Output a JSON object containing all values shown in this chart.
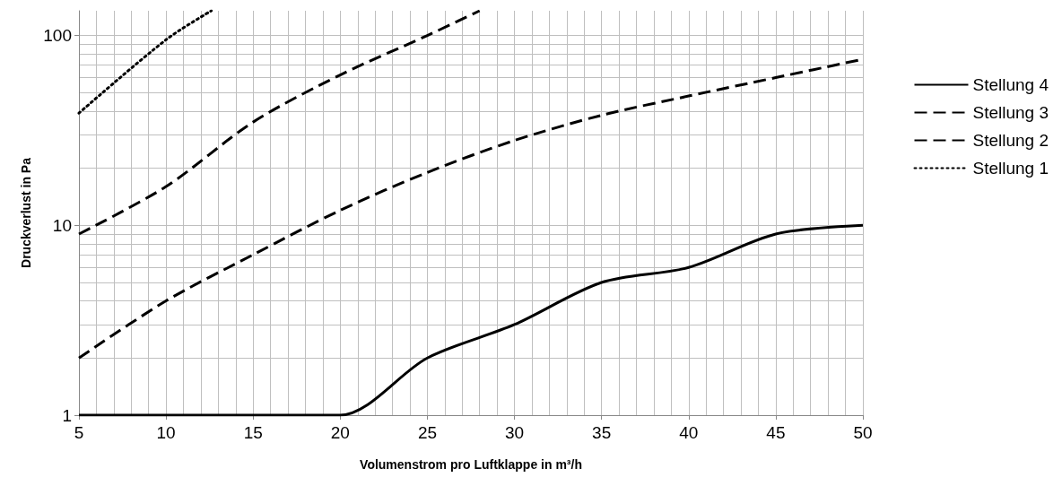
{
  "chart_data": {
    "type": "line",
    "xlabel": "Volumenstrom pro Luftklappe in m³/h",
    "ylabel": "Druckverlust in Pa",
    "log": "y",
    "xlim": [
      5,
      50
    ],
    "xticks": [
      5,
      10,
      15,
      20,
      25,
      30,
      35,
      40,
      45,
      50
    ],
    "ylim": [
      1,
      135
    ],
    "yticks": [
      1,
      10,
      100
    ],
    "grid": true,
    "legend": "right",
    "marker": "none",
    "series": [
      {
        "name": "Stellung 4",
        "color": "#000000",
        "line_style": "solid",
        "x": [
          5,
          10,
          15,
          20,
          25,
          30,
          35,
          40,
          45,
          50
        ],
        "values": [
          1,
          1,
          1,
          1,
          2,
          3,
          5,
          6,
          9,
          10
        ]
      },
      {
        "name": "Stellung 3",
        "color": "#000000",
        "line_style": "dashed",
        "x": [
          5,
          10,
          15,
          20,
          25,
          30,
          35,
          40,
          45,
          50
        ],
        "values": [
          2,
          4,
          7,
          12,
          19,
          28,
          38,
          48,
          60,
          75
        ]
      },
      {
        "name": "Stellung 2",
        "color": "#000000",
        "line_style": "dashed",
        "x": [
          5,
          10,
          15,
          20,
          25,
          28
        ],
        "values": [
          9,
          16,
          35,
          62,
          100,
          135
        ]
      },
      {
        "name": "Stellung 1",
        "color": "#000000",
        "line_style": "dotted",
        "x": [
          5,
          10,
          12.6
        ],
        "values": [
          39,
          95,
          135
        ]
      }
    ]
  }
}
